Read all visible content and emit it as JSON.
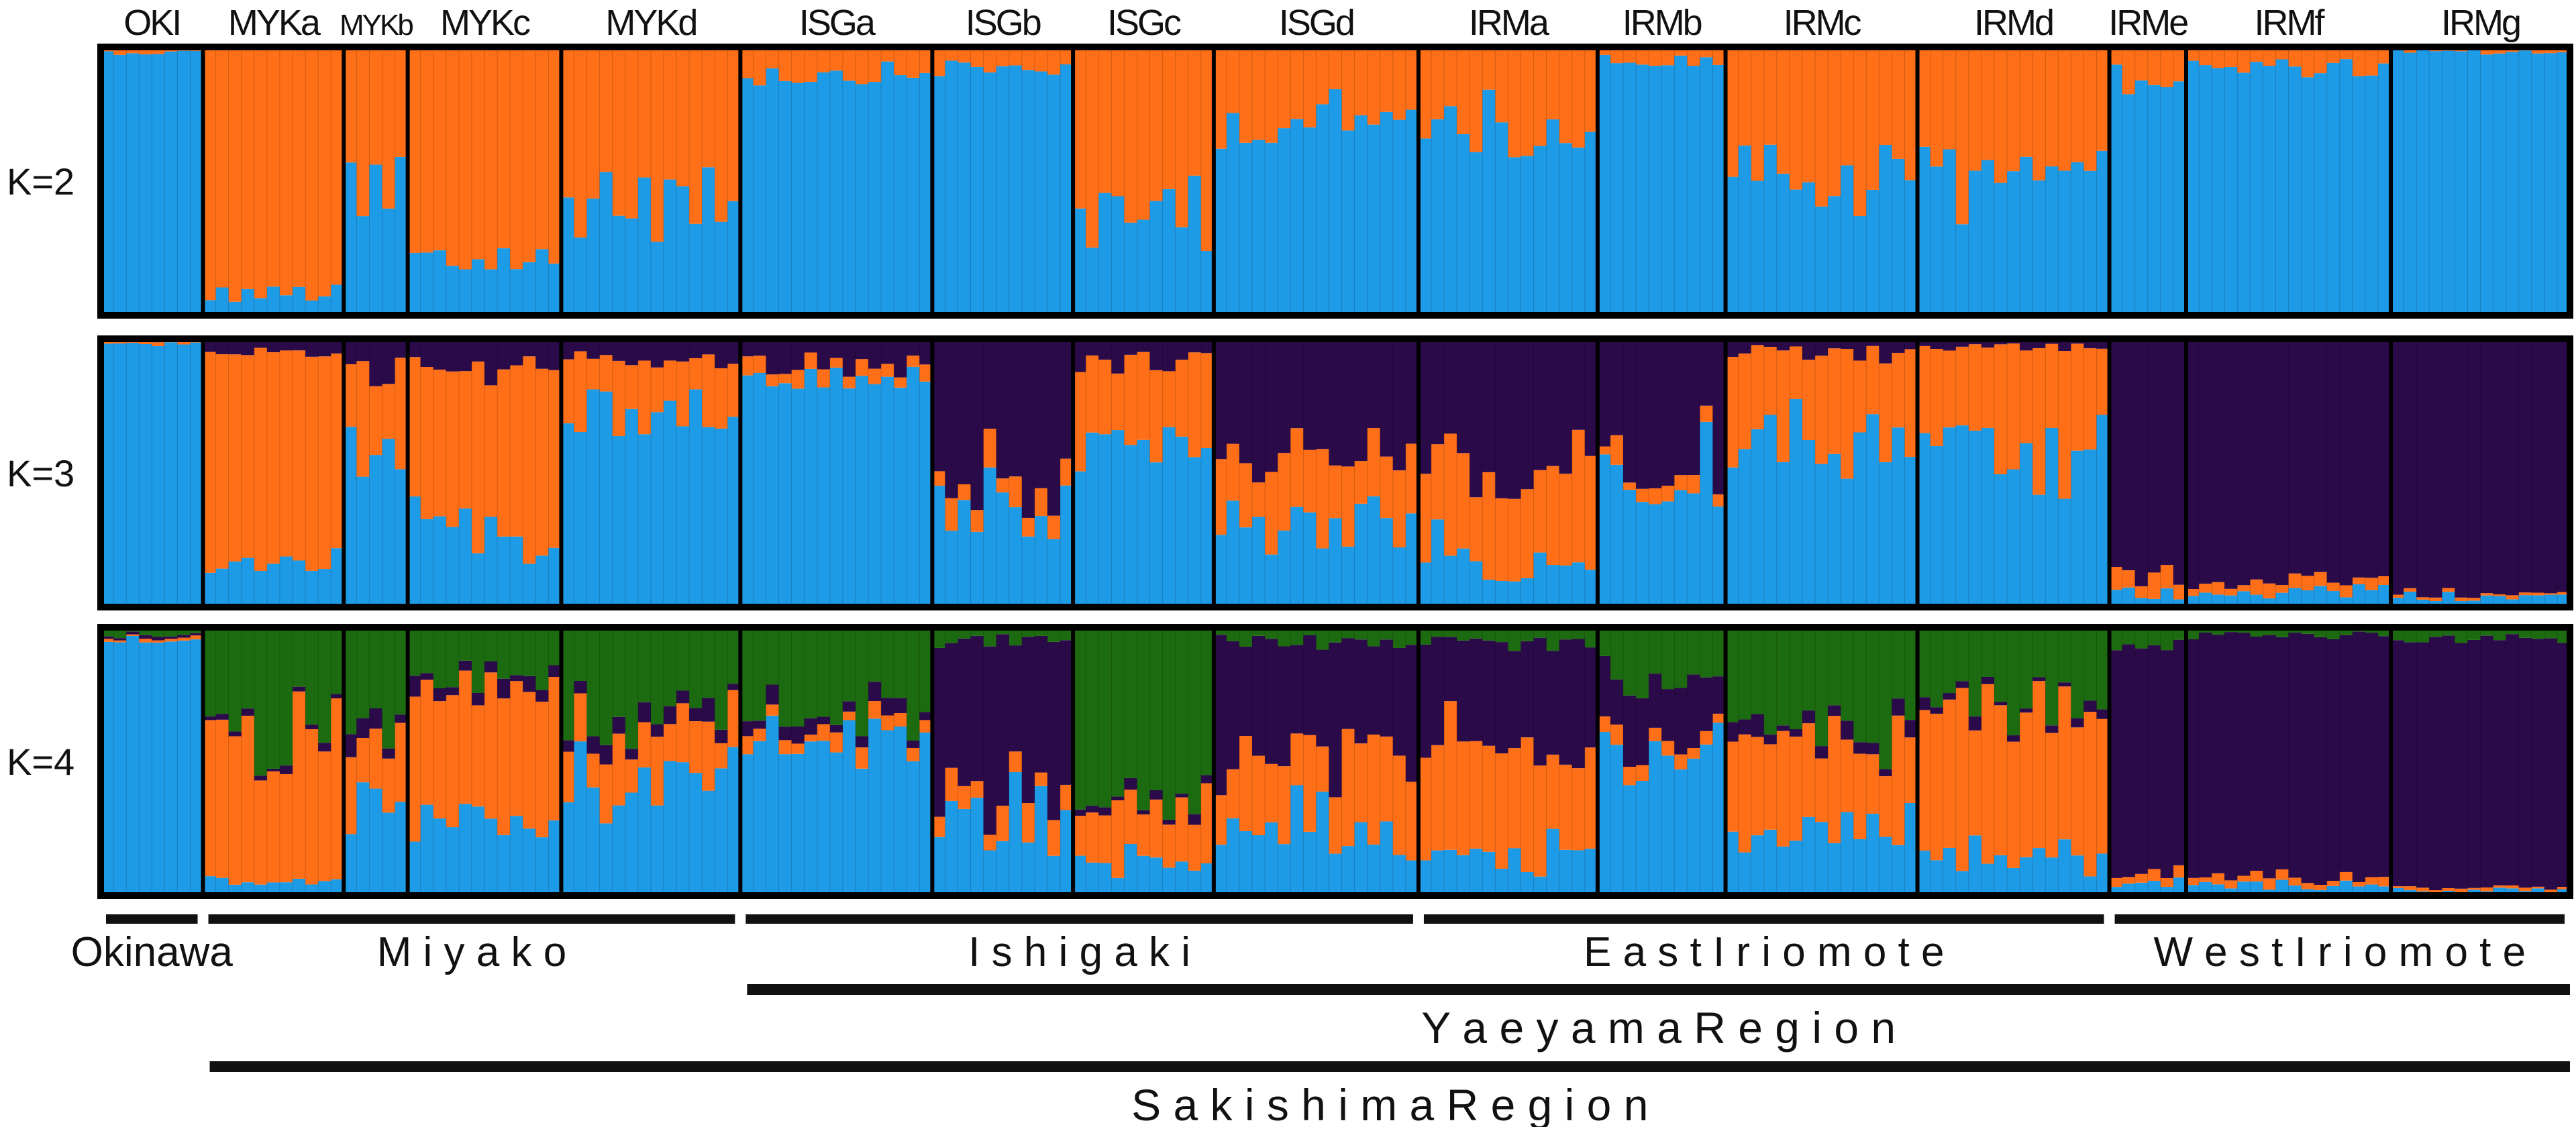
{
  "chart_data": {
    "type": "bar",
    "variant": "stacked-admixture",
    "populations": [
      "OKI",
      "MYKa",
      "MYKb",
      "MYKc",
      "MYKd",
      "ISGa",
      "ISGb",
      "ISGc",
      "ISGd",
      "IRMa",
      "IRMb",
      "IRMc",
      "IRMd",
      "IRMe",
      "IRMf",
      "IRMg"
    ],
    "individuals_per_population": [
      8,
      11,
      5,
      12,
      14,
      15,
      11,
      11,
      16,
      14,
      10,
      15,
      15,
      6,
      16,
      14
    ],
    "colors": {
      "blue": "#1e9be6",
      "orange": "#ff6f17",
      "purple": "#2b0a4a",
      "green": "#1d6b10"
    },
    "panels": [
      {
        "label": "K=2",
        "components": [
          "blue",
          "orange"
        ],
        "population_means": [
          [
            0.98,
            0.02
          ],
          [
            0.08,
            0.92
          ],
          [
            0.45,
            0.55
          ],
          [
            0.2,
            0.8
          ],
          [
            0.45,
            0.55
          ],
          [
            0.9,
            0.1
          ],
          [
            0.92,
            0.08
          ],
          [
            0.4,
            0.6
          ],
          [
            0.72,
            0.28
          ],
          [
            0.7,
            0.3
          ],
          [
            0.95,
            0.05
          ],
          [
            0.5,
            0.5
          ],
          [
            0.55,
            0.45
          ],
          [
            0.88,
            0.12
          ],
          [
            0.92,
            0.08
          ],
          [
            0.98,
            0.02
          ]
        ]
      },
      {
        "label": "K=3",
        "components": [
          "blue",
          "orange",
          "purple"
        ],
        "population_means": [
          [
            0.98,
            0.01,
            0.01
          ],
          [
            0.15,
            0.8,
            0.05
          ],
          [
            0.6,
            0.3,
            0.1
          ],
          [
            0.3,
            0.6,
            0.1
          ],
          [
            0.72,
            0.2,
            0.08
          ],
          [
            0.85,
            0.05,
            0.1
          ],
          [
            0.35,
            0.1,
            0.55
          ],
          [
            0.6,
            0.3,
            0.1
          ],
          [
            0.3,
            0.25,
            0.45
          ],
          [
            0.15,
            0.35,
            0.5
          ],
          [
            0.55,
            0.05,
            0.4
          ],
          [
            0.6,
            0.35,
            0.05
          ],
          [
            0.55,
            0.42,
            0.03
          ],
          [
            0.05,
            0.08,
            0.87
          ],
          [
            0.06,
            0.04,
            0.9
          ],
          [
            0.04,
            0.01,
            0.95
          ]
        ]
      },
      {
        "label": "K=4",
        "components": [
          "blue",
          "orange",
          "purple",
          "green"
        ],
        "population_means": [
          [
            0.95,
            0.01,
            0.01,
            0.03
          ],
          [
            0.05,
            0.55,
            0.02,
            0.38
          ],
          [
            0.3,
            0.3,
            0.05,
            0.35
          ],
          [
            0.3,
            0.45,
            0.05,
            0.2
          ],
          [
            0.45,
            0.2,
            0.05,
            0.3
          ],
          [
            0.6,
            0.05,
            0.05,
            0.3
          ],
          [
            0.3,
            0.1,
            0.55,
            0.05
          ],
          [
            0.12,
            0.25,
            0.03,
            0.6
          ],
          [
            0.25,
            0.25,
            0.45,
            0.05
          ],
          [
            0.15,
            0.4,
            0.4,
            0.05
          ],
          [
            0.55,
            0.05,
            0.2,
            0.2
          ],
          [
            0.25,
            0.35,
            0.05,
            0.35
          ],
          [
            0.15,
            0.5,
            0.03,
            0.32
          ],
          [
            0.05,
            0.04,
            0.85,
            0.06
          ],
          [
            0.04,
            0.03,
            0.9,
            0.03
          ],
          [
            0.02,
            0.01,
            0.93,
            0.04
          ]
        ]
      }
    ],
    "groups": [
      {
        "label": "Okinawa",
        "from": 0,
        "to": 0
      },
      {
        "label": "M i y a k o",
        "from": 1,
        "to": 4
      },
      {
        "label": "I s h i g a k i",
        "from": 5,
        "to": 8
      },
      {
        "label": "E a s t  I r i o m o t e",
        "from": 9,
        "to": 12
      },
      {
        "label": "W e s t  I r i o m o t e",
        "from": 13,
        "to": 15
      }
    ],
    "regions": [
      {
        "label": "Y a e y a m a   R e g i o n",
        "from": 5,
        "to": 15
      },
      {
        "label": "S a k i s h i m a   R e g i o n",
        "from": 1,
        "to": 15
      }
    ]
  }
}
